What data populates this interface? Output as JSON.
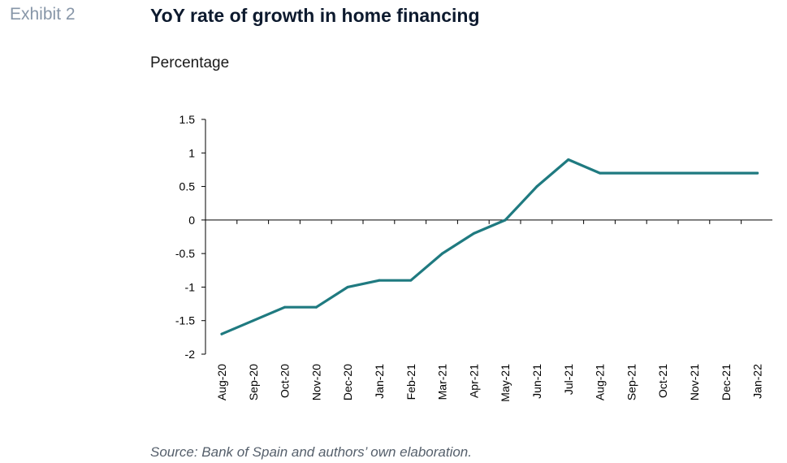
{
  "header": {
    "exhibit": "Exhibit 2",
    "title": "YoY rate of growth in home financing",
    "subtitle": "Percentage"
  },
  "footer": {
    "source": "Source: Bank of Spain and authors’ own elaboration."
  },
  "chart_data": {
    "type": "line",
    "title": "YoY rate of growth in home financing",
    "ylabel": "Percentage",
    "xlabel": "",
    "categories": [
      "Aug-20",
      "Sep-20",
      "Oct-20",
      "Nov-20",
      "Dec-20",
      "Jan-21",
      "Feb-21",
      "Mar-21",
      "Apr-21",
      "May-21",
      "Jun-21",
      "Jul-21",
      "Aug-21",
      "Sep-21",
      "Oct-21",
      "Nov-21",
      "Dec-21",
      "Jan-22"
    ],
    "series": [
      {
        "values": [
          -1.7,
          -1.5,
          -1.3,
          -1.3,
          -1.0,
          -0.9,
          -0.9,
          -0.5,
          -0.2,
          0.0,
          0.5,
          0.9,
          0.7,
          0.7,
          0.7,
          0.7,
          0.7,
          0.7
        ],
        "color": "#1f7a80"
      }
    ],
    "ylim": [
      -2,
      1.5
    ],
    "yticks": [
      "1.5",
      "1",
      "0.5",
      "0",
      "-0.5",
      "-1",
      "-1.5",
      "-2"
    ],
    "ytick_values": [
      1.5,
      1,
      0.5,
      0,
      -0.5,
      -1,
      -1.5,
      -2
    ],
    "grid": false,
    "legend": "none"
  }
}
